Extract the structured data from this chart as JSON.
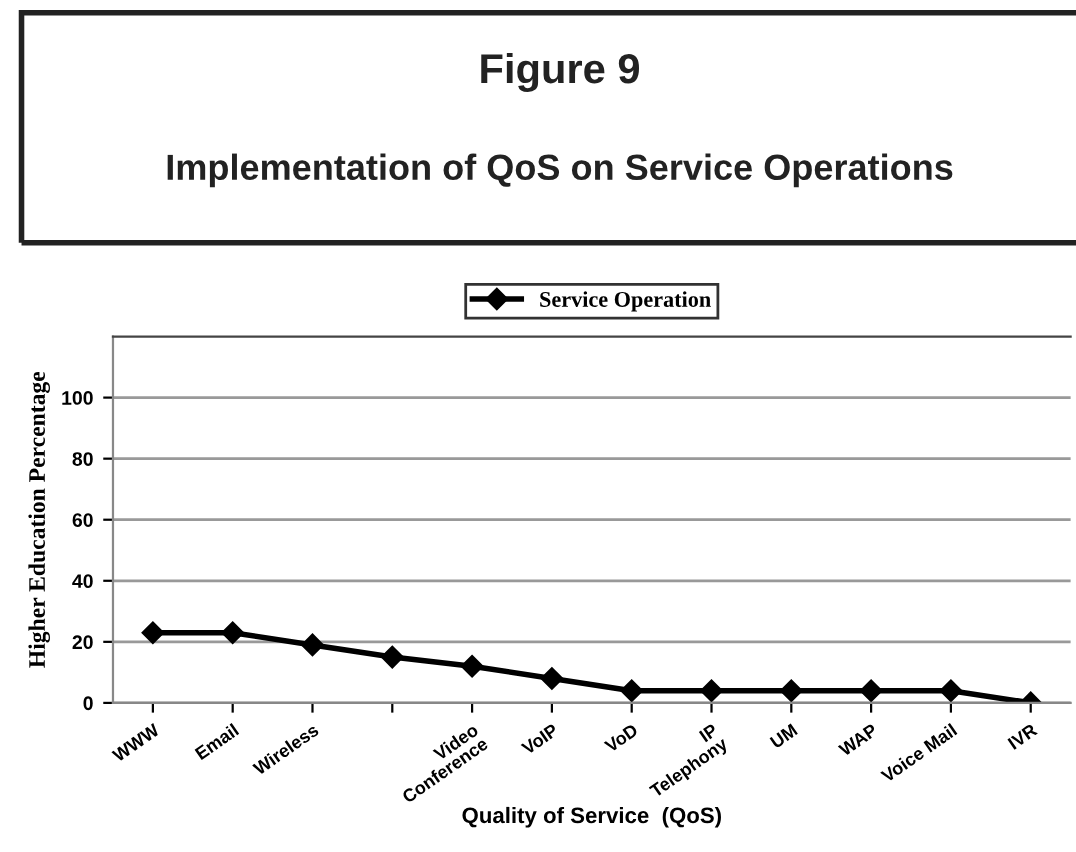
{
  "chart_data": {
    "type": "line",
    "title": "Figure 9",
    "subtitle": "Implementation of QoS on Service Operations",
    "xlabel": "Quality of Service  (QoS)",
    "ylabel": "Higher Education Percentage",
    "categories": [
      "WWW",
      "Email",
      "Wireless",
      null,
      "Video\nConference",
      "VoIP",
      "VoD",
      "IP\nTelephony",
      "UM",
      "WAP",
      "Voice Mail",
      "IVR"
    ],
    "series": [
      {
        "name": "Service Operation",
        "color": "#000000",
        "values": [
          23,
          23,
          19,
          15,
          12,
          8,
          4,
          4,
          4,
          4,
          4,
          0
        ]
      }
    ],
    "ylim": [
      0,
      120
    ],
    "yticks": [
      0,
      20,
      40,
      60,
      80,
      100
    ],
    "grid": "y",
    "legend": "top",
    "marker": "diamond",
    "line_style": "solid"
  }
}
